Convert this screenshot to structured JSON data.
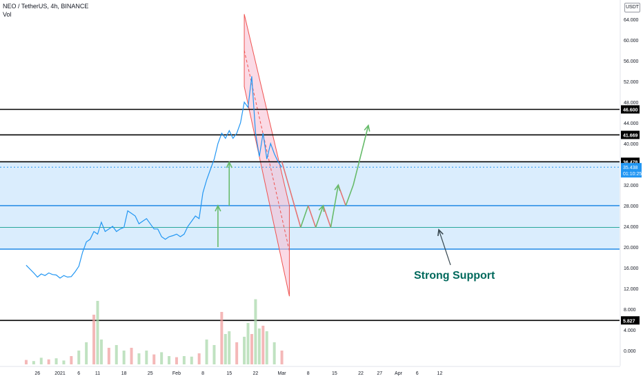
{
  "header": {
    "symbol_line": "NEO / TetherUS, 4h, BINANCE",
    "volume_label": "Vol"
  },
  "currency": "USDT",
  "annotation_text": "Strong Support",
  "colors": {
    "price_line": "#2196f3",
    "support_zone_fill": "#bbdefb",
    "support_zone_line": "#1e88e5",
    "channel_fill": "#f8bbd0",
    "channel_line": "#ef5350",
    "arrow_green": "#66bb6a",
    "arrow_red": "#e57373",
    "annotation_color": "#00695c",
    "level_line": "#000000",
    "volume_up": "#a5d6a7",
    "volume_down": "#ef9a9a"
  },
  "chart_data": {
    "type": "line",
    "title": "NEO / TetherUS, 4h, BINANCE",
    "xlabel": "",
    "ylabel": "",
    "ylim": [
      -4,
      66
    ],
    "price_scale": {
      "ticks": [
        "64.000",
        "60.000",
        "56.000",
        "52.000",
        "48.000",
        "44.000",
        "40.000",
        "36.000",
        "32.000",
        "28.000",
        "24.000",
        "20.000",
        "16.000",
        "12.000",
        "8.000",
        "4.000",
        "0.000"
      ],
      "tick_values": [
        64,
        60,
        56,
        52,
        48,
        44,
        40,
        36,
        32,
        28,
        24,
        20,
        16,
        12,
        8,
        4,
        0
      ]
    },
    "time_axis": {
      "labels": [
        "26",
        "2021",
        "6",
        "11",
        "18",
        "25",
        "Feb",
        "8",
        "15",
        "22",
        "Mar",
        "8",
        "15",
        "22",
        "27",
        "Apr",
        "6",
        "12"
      ],
      "day_index": [
        -6,
        0,
        5,
        10,
        17,
        24,
        31,
        38,
        45,
        52,
        59,
        66,
        73,
        80,
        85,
        90,
        95,
        101
      ]
    },
    "current_price": {
      "label": "35.438",
      "countdown": "01:10:25",
      "value": 35.44
    },
    "horizontal_levels": [
      {
        "label": "46.600",
        "value": 46.6
      },
      {
        "label": "41.669",
        "value": 41.67
      },
      {
        "label": "36.478",
        "value": 36.48
      },
      {
        "label": "5.827",
        "value": 5.83
      }
    ],
    "support_zone": {
      "top": 36.48,
      "bottom": 19.6,
      "inner_lines": [
        28.0,
        23.8
      ]
    },
    "series": [
      {
        "name": "NEO/USDT",
        "x_day": [
          -9,
          -7,
          -6,
          -5,
          -4,
          -3,
          -2,
          -1,
          0,
          1,
          2,
          3,
          4,
          5,
          6,
          7,
          8,
          9,
          10,
          11,
          12,
          13,
          14,
          15,
          16,
          17,
          18,
          19,
          20,
          21,
          22,
          23,
          24,
          25,
          26,
          27,
          28,
          29,
          30,
          31,
          32,
          33,
          34,
          35,
          36,
          37,
          38,
          39,
          40,
          41,
          42,
          43,
          44,
          45,
          46,
          47,
          48,
          49,
          50,
          51,
          52,
          53,
          54,
          55,
          56,
          57,
          58,
          59
        ],
        "values": [
          16.5,
          15.0,
          14.2,
          14.8,
          14.5,
          15.0,
          14.7,
          14.6,
          14.0,
          14.5,
          14.2,
          14.3,
          15.2,
          16.3,
          19.0,
          21.0,
          21.5,
          23.0,
          22.5,
          24.8,
          23.0,
          23.5,
          24.0,
          23.0,
          23.5,
          23.8,
          27.0,
          26.5,
          26.0,
          24.5,
          25.0,
          25.5,
          24.5,
          23.5,
          23.5,
          22.0,
          21.5,
          22.0,
          22.2,
          22.5,
          22.0,
          22.5,
          24.0,
          25.0,
          26.0,
          25.5,
          30.5,
          33.0,
          35.0,
          37.0,
          40.0,
          42.0,
          41.0,
          42.5,
          41.0,
          42.0,
          44.0,
          48.0,
          47.0,
          53.0,
          42.0,
          37.5,
          42.0,
          37.0,
          40.0,
          38.0,
          36.5,
          35.4
        ]
      }
    ],
    "volume": {
      "x_day": [
        -9,
        -7,
        -5,
        -3,
        -1,
        1,
        3,
        5,
        7,
        9,
        10,
        11,
        13,
        15,
        17,
        19,
        21,
        23,
        25,
        27,
        29,
        31,
        33,
        35,
        37,
        39,
        41,
        43,
        44,
        45,
        47,
        49,
        50,
        51,
        52,
        53,
        54,
        55,
        57,
        59
      ],
      "values": [
        0.8,
        0.6,
        1.2,
        0.9,
        1.1,
        0.7,
        1.5,
        2.5,
        4.0,
        9.0,
        11.5,
        4.5,
        3.0,
        3.5,
        2.5,
        3.0,
        2.0,
        2.5,
        1.8,
        2.2,
        1.5,
        1.3,
        1.5,
        1.4,
        2.0,
        4.5,
        3.5,
        9.5,
        5.5,
        6.0,
        4.0,
        5.0,
        7.5,
        5.5,
        11.8,
        6.5,
        7.0,
        6.0,
        4.0,
        2.5
      ]
    },
    "projection": {
      "note": "drawn path of expected price: drop to support then rise",
      "x_day": [
        59,
        64,
        66,
        68,
        70,
        72,
        74,
        76,
        78,
        82
      ],
      "values": [
        36.5,
        23.8,
        28.0,
        23.8,
        28.0,
        23.8,
        32.0,
        28.0,
        32.0,
        43.5
      ]
    },
    "down_channel": {
      "upper": {
        "x_day": [
          49,
          61
        ],
        "values": [
          65.0,
          28.0
        ]
      },
      "lower": {
        "x_day": [
          49,
          61
        ],
        "values": [
          51.0,
          10.5
        ]
      }
    }
  }
}
